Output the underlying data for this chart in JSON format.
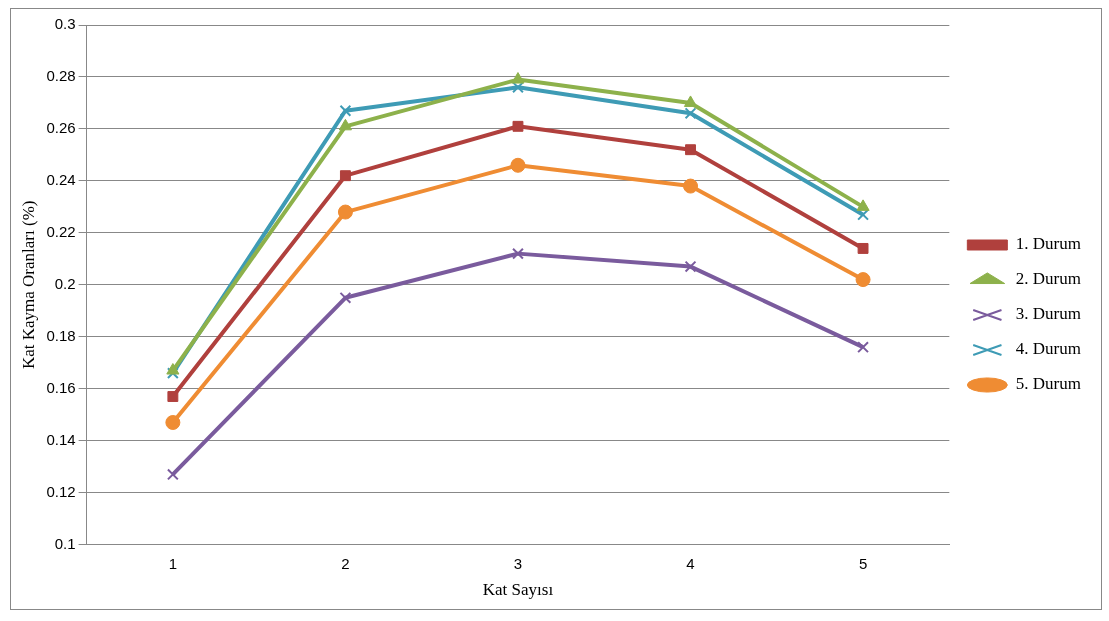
{
  "chart_data": {
    "type": "line",
    "xlabel": "Kat Sayısı",
    "ylabel": "Kat Kayma Oranları (%)",
    "categories": [
      "1",
      "2",
      "3",
      "4",
      "5"
    ],
    "series": [
      {
        "name": "1. Durum",
        "color": "#b0403d",
        "marker": "square",
        "values": [
          0.157,
          0.242,
          0.261,
          0.252,
          0.214
        ]
      },
      {
        "name": "2. Durum",
        "color": "#8db14b",
        "marker": "triangle",
        "values": [
          0.167,
          0.261,
          0.279,
          0.27,
          0.23
        ]
      },
      {
        "name": "3. Durum",
        "color": "#7a5b9d",
        "marker": "cross",
        "values": [
          0.127,
          0.195,
          0.212,
          0.207,
          0.176
        ]
      },
      {
        "name": "4. Durum",
        "color": "#3e9bb5",
        "marker": "cross",
        "values": [
          0.166,
          0.267,
          0.276,
          0.266,
          0.227
        ]
      },
      {
        "name": "5. Durum",
        "color": "#ef8c33",
        "marker": "circle",
        "values": [
          0.147,
          0.228,
          0.246,
          0.238,
          0.202
        ]
      }
    ],
    "ylim": [
      0.1,
      0.3
    ],
    "yticks": [
      0.1,
      0.12,
      0.14,
      0.16,
      0.18,
      0.2,
      0.22,
      0.24,
      0.26,
      0.28,
      0.3
    ],
    "grid": "y",
    "legend": "right",
    "line_style": "solid"
  }
}
